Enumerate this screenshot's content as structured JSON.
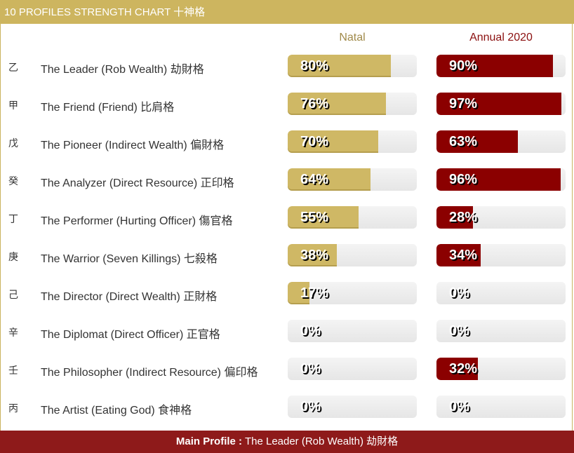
{
  "header": {
    "title": "10 PROFILES STRENGTH CHART 十神格"
  },
  "columns": {
    "natal": "Natal",
    "annual": "Annual 2020"
  },
  "colors": {
    "gold": "#cfb865",
    "red": "#8b0000",
    "footer": "#8e1a1a"
  },
  "rows": [
    {
      "stem": "乙",
      "label": "The Leader (Rob Wealth) 劫財格",
      "natal": 80,
      "natal_text": "80%",
      "annual": 90,
      "annual_text": "90%"
    },
    {
      "stem": "甲",
      "label": "The Friend (Friend) 比肩格",
      "natal": 76,
      "natal_text": "76%",
      "annual": 97,
      "annual_text": "97%"
    },
    {
      "stem": "戊",
      "label": "The Pioneer (Indirect Wealth) 偏財格",
      "natal": 70,
      "natal_text": "70%",
      "annual": 63,
      "annual_text": "63%"
    },
    {
      "stem": "癸",
      "label": "The Analyzer (Direct Resource) 正印格",
      "natal": 64,
      "natal_text": "64%",
      "annual": 96,
      "annual_text": "96%"
    },
    {
      "stem": "丁",
      "label": "The Performer (Hurting Officer) 傷官格",
      "natal": 55,
      "natal_text": "55%",
      "annual": 28,
      "annual_text": "28%"
    },
    {
      "stem": "庚",
      "label": "The Warrior (Seven Killings) 七殺格",
      "natal": 38,
      "natal_text": "38%",
      "annual": 34,
      "annual_text": "34%"
    },
    {
      "stem": "己",
      "label": "The Director (Direct Wealth) 正財格",
      "natal": 17,
      "natal_text": "17%",
      "annual": 0,
      "annual_text": "0%"
    },
    {
      "stem": "辛",
      "label": "The Diplomat (Direct Officer) 正官格",
      "natal": 0,
      "natal_text": "0%",
      "annual": 0,
      "annual_text": "0%"
    },
    {
      "stem": "壬",
      "label": "The Philosopher (Indirect Resource) 偏印格",
      "natal": 0,
      "natal_text": "0%",
      "annual": 32,
      "annual_text": "32%"
    },
    {
      "stem": "丙",
      "label": "The Artist (Eating God) 食神格",
      "natal": 0,
      "natal_text": "0%",
      "annual": 0,
      "annual_text": "0%"
    }
  ],
  "footer": {
    "prefix": "Main Profile :",
    "value": " The Leader (Rob Wealth) 劫財格"
  }
}
